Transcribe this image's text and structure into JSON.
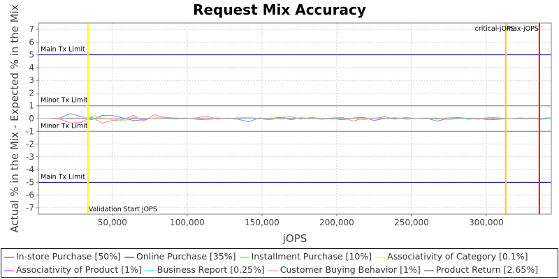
{
  "chart_data": {
    "type": "line",
    "title": "Request Mix Accuracy",
    "xlabel": "jOPS",
    "ylabel": "Actual % in the Mix - Expected % in the Mix",
    "xlim": [
      500,
      343500
    ],
    "ylim": [
      -7.5,
      7.5
    ],
    "grid": true,
    "legend_position": "bottom",
    "x_ticks": [
      "50,000",
      "100,000",
      "150,000",
      "200,000",
      "250,000",
      "300,000"
    ],
    "x_tick_values": [
      50000,
      100000,
      150000,
      200000,
      250000,
      300000
    ],
    "y_ticks": [
      "-7",
      "-6",
      "-5",
      "-4",
      "-3",
      "-2",
      "-1",
      "0",
      "1",
      "2",
      "3",
      "4",
      "5",
      "6",
      "7"
    ],
    "y_tick_values": [
      -7,
      -6,
      -5,
      -4,
      -3,
      -2,
      -1,
      0,
      1,
      2,
      3,
      4,
      5,
      6,
      7
    ],
    "horizontal_markers": [
      {
        "label": "Main Tx Limit",
        "value": 5,
        "color": "#00008b"
      },
      {
        "label": "Minor Tx Limit",
        "value": 1,
        "color": "#808080"
      },
      {
        "label": "Minor Tx Limit",
        "value": -1,
        "color": "#808080"
      },
      {
        "label": "Main Tx Limit",
        "value": -5,
        "color": "#00008b"
      }
    ],
    "vertical_markers": [
      {
        "label": "Validation Start jOPS",
        "value": 33600,
        "color": "#ffff00"
      },
      {
        "label": "critical-jOPS",
        "value": 313000,
        "color": "#ffc800"
      },
      {
        "label": "max-jOPS",
        "value": 335500,
        "color": "#ff0000"
      }
    ],
    "x": [
      1000,
      8000,
      15000,
      22000,
      29000,
      36000,
      43000,
      50000,
      57000,
      64000,
      71000,
      78000,
      85000,
      92000,
      99000,
      106000,
      113000,
      120000,
      127000,
      134000,
      141000,
      148000,
      155000,
      162000,
      169000,
      176000,
      183000,
      190000,
      197000,
      204000,
      211000,
      218000,
      225000,
      232000,
      239000,
      246000,
      253000,
      260000,
      267000,
      274000,
      281000,
      288000,
      295000,
      302000,
      309000,
      316000,
      323000,
      330000,
      337000,
      343000
    ],
    "series": [
      {
        "name": "In-store Purchase [50%]",
        "color": "#ff8080",
        "values": [
          0,
          0,
          -0.05,
          -0.35,
          -0.3,
          0.12,
          -0.35,
          -0.15,
          -0.1,
          0.25,
          -0.2,
          0.3,
          0.1,
          0.05,
          0,
          0.05,
          0.2,
          -0.05,
          0,
          0.05,
          0.1,
          0,
          -0.1,
          0.05,
          0.15,
          -0.05,
          0.1,
          0,
          0.05,
          0.1,
          -0.2,
          0.05,
          0,
          0.15,
          -0.05,
          0.1,
          0,
          0.05,
          -0.05,
          0.05,
          0.1,
          0,
          -0.05,
          0.1,
          0.05,
          0,
          0,
          0.05,
          0,
          0
        ]
      },
      {
        "name": "Online Purchase [35%]",
        "color": "#8080ff",
        "values": [
          0,
          0,
          0.05,
          0.4,
          0.15,
          -0.1,
          0.25,
          0.25,
          0.05,
          -0.15,
          -0.1,
          0.05,
          0.05,
          0,
          0.05,
          -0.05,
          -0.1,
          0.05,
          0,
          -0.05,
          -0.25,
          0.05,
          0,
          0.1,
          -0.1,
          0.05,
          0,
          -0.05,
          0,
          -0.1,
          0.05,
          0.1,
          -0.15,
          0,
          0.05,
          -0.05,
          0,
          0.05,
          -0.2,
          0,
          0.05,
          -0.05,
          0,
          -0.1,
          -0.05,
          0,
          0.05,
          0,
          -0.05,
          0
        ]
      },
      {
        "name": "Installment Purchase [10%]",
        "color": "#80ff80",
        "values": [
          0,
          0,
          0,
          -0.05,
          0,
          0.2,
          0.05,
          0,
          -0.2,
          0.1,
          -0.05,
          0.05,
          0,
          -0.05,
          0,
          0.05,
          -0.1,
          0,
          0.05,
          0,
          0.1,
          -0.05,
          0.05,
          0,
          -0.05,
          0.1,
          0,
          0.05,
          -0.05,
          0,
          0.05,
          -0.1,
          0.05,
          0,
          0.1,
          -0.05,
          0,
          0.05,
          0.05,
          -0.1,
          0,
          0.05,
          0,
          -0.05,
          0.05,
          0,
          0,
          0,
          0,
          0.1
        ]
      },
      {
        "name": "Associativity of Category [0.1%]",
        "color": "#ffff80",
        "values": [
          0,
          0,
          0,
          0,
          0.02,
          0,
          0.02,
          0,
          0.01,
          0,
          0,
          0.02,
          0,
          0,
          0.01,
          0,
          0,
          0.01,
          0,
          0,
          0.01,
          0,
          0,
          0,
          0.01,
          0,
          0,
          0.01,
          0,
          0,
          0,
          0.01,
          0,
          0,
          0,
          0.01,
          0,
          0,
          0,
          0.01,
          0,
          0,
          0,
          0,
          0.01,
          0,
          0,
          0,
          0,
          0
        ]
      },
      {
        "name": "Associativity of Product [1%]",
        "color": "#ff80ff",
        "values": [
          0,
          0,
          0.02,
          0,
          -0.03,
          0.04,
          -0.02,
          0.03,
          0,
          -0.03,
          0.02,
          0,
          0.01,
          -0.02,
          0,
          0.02,
          0,
          -0.01,
          0.01,
          0,
          0,
          0.02,
          -0.01,
          0,
          0.01,
          0,
          -0.02,
          0,
          0.01,
          0,
          0,
          -0.01,
          0.02,
          0,
          0,
          0.01,
          0,
          -0.01,
          0,
          0.01,
          0,
          0,
          0,
          -0.01,
          0,
          0.01,
          0,
          0,
          0,
          0
        ]
      },
      {
        "name": "Business Report [0.25%]",
        "color": "#80ffff",
        "values": [
          0,
          0,
          0,
          0.02,
          0,
          -0.02,
          0.01,
          0,
          0.02,
          0,
          -0.01,
          0,
          0.01,
          0,
          0,
          0.01,
          0,
          0,
          -0.01,
          0,
          0.01,
          0,
          0,
          0,
          0.01,
          0,
          0,
          -0.01,
          0,
          0,
          0.01,
          0,
          0,
          0,
          0,
          0.01,
          0,
          0,
          0,
          0,
          0.01,
          0,
          0,
          0,
          0,
          0,
          0,
          0,
          0,
          0
        ]
      },
      {
        "name": "Customer Buying Behavior [1%]",
        "color": "#ffc0c0",
        "values": [
          0,
          0,
          0.03,
          -0.05,
          0.04,
          0,
          -0.04,
          0.05,
          0,
          0.03,
          -0.03,
          0.02,
          0,
          0.02,
          -0.02,
          0,
          0.03,
          0,
          -0.02,
          0.01,
          0,
          0.02,
          0,
          -0.02,
          0,
          0.02,
          0,
          0,
          -0.02,
          0.02,
          0,
          0,
          0.02,
          0,
          -0.02,
          0,
          0.01,
          0,
          0,
          0.02,
          0,
          -0.01,
          0,
          0,
          0.01,
          0,
          0,
          0,
          0,
          0
        ]
      },
      {
        "name": "Product Return [2.65%]",
        "color": "#a0a0a0",
        "values": [
          0,
          0,
          -0.03,
          0.05,
          -0.02,
          0.04,
          0,
          -0.05,
          0.03,
          0,
          0.02,
          -0.03,
          0,
          0.02,
          0,
          -0.02,
          0.01,
          0,
          0.02,
          -0.01,
          0,
          0.02,
          0,
          -0.02,
          0.01,
          0,
          0.01,
          -0.01,
          0,
          0.02,
          0,
          -0.02,
          0,
          0.01,
          0,
          0,
          -0.01,
          0.02,
          0,
          0,
          -0.01,
          0,
          0.01,
          0,
          0,
          0,
          -0.01,
          0,
          0,
          0
        ]
      }
    ]
  }
}
